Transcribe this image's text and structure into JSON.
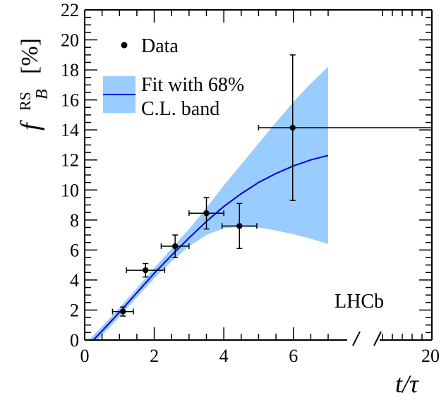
{
  "chart_data": {
    "type": "scatter",
    "xlabel": "t/τ",
    "ylabel": {
      "f": "f",
      "sup": "RS",
      "sub": "B",
      "unit": "[%]"
    },
    "annotation": "LHCb",
    "x_axis": {
      "segments": [
        [
          0,
          7
        ],
        [
          20,
          20
        ]
      ],
      "ticks": [
        {
          "value": 0,
          "label": "0"
        },
        {
          "value": 2,
          "label": "2"
        },
        {
          "value": 4,
          "label": "4"
        },
        {
          "value": 6,
          "label": "6"
        },
        {
          "value": 20,
          "label": "20"
        }
      ],
      "break_marks": true
    },
    "y_axis": {
      "range": [
        0,
        22
      ],
      "ticks": [
        {
          "value": 0,
          "label": "0"
        },
        {
          "value": 2,
          "label": "2"
        },
        {
          "value": 4,
          "label": "4"
        },
        {
          "value": 6,
          "label": "6"
        },
        {
          "value": 8,
          "label": "8"
        },
        {
          "value": 10,
          "label": "10"
        },
        {
          "value": 12,
          "label": "12"
        },
        {
          "value": 14,
          "label": "14"
        },
        {
          "value": 16,
          "label": "16"
        },
        {
          "value": 18,
          "label": "18"
        },
        {
          "value": 20,
          "label": "20"
        },
        {
          "value": 22,
          "label": "22"
        }
      ]
    },
    "legend": {
      "placement": "top-left",
      "data_label": "Data",
      "fit_label_line1": "Fit with 68%",
      "fit_label_line2": "C.L. band"
    },
    "series": [
      {
        "name": "Data",
        "kind": "points",
        "points": [
          {
            "x": 1.1,
            "y": 1.9,
            "xerr_low": 0.3,
            "xerr_high": 0.3,
            "yerr_low": 0.3,
            "yerr_high": 0.3
          },
          {
            "x": 1.75,
            "y": 4.65,
            "xerr_low": 0.55,
            "xerr_high": 0.55,
            "yerr_low": 0.45,
            "yerr_high": 0.45
          },
          {
            "x": 2.6,
            "y": 6.25,
            "xerr_low": 0.4,
            "xerr_high": 0.4,
            "yerr_low": 0.75,
            "yerr_high": 0.75
          },
          {
            "x": 3.5,
            "y": 8.45,
            "xerr_low": 0.5,
            "xerr_high": 0.5,
            "yerr_low": 1.05,
            "yerr_high": 1.05
          },
          {
            "x": 4.45,
            "y": 7.6,
            "xerr_low": 0.5,
            "xerr_high": 0.5,
            "yerr_low": 1.5,
            "yerr_high": 1.5
          },
          {
            "x": 5.98,
            "y": 14.15,
            "xerr_low": 0.98,
            "xerr_high": 14.02,
            "yerr_low": 4.85,
            "yerr_high": 4.85
          }
        ]
      },
      {
        "name": "Fit with 68% C.L. band",
        "kind": "fit",
        "color": "#0000dd",
        "band_color": "#99ccff",
        "x": [
          0,
          0.25,
          0.5,
          1.0,
          1.5,
          2.0,
          2.5,
          3.0,
          3.5,
          4.0,
          4.5,
          5.0,
          5.5,
          6.0,
          6.5,
          7.0
        ],
        "y": [
          -0.6,
          0.0,
          0.6,
          1.85,
          3.15,
          4.45,
          5.65,
          6.8,
          7.9,
          8.9,
          9.75,
          10.5,
          11.1,
          11.6,
          12.0,
          12.3
        ],
        "y_low": [
          -1.0,
          -0.3,
          0.3,
          1.55,
          2.85,
          4.1,
          5.25,
          6.25,
          7.0,
          7.45,
          7.55,
          7.5,
          7.3,
          7.05,
          6.75,
          6.4
        ],
        "y_high": [
          -0.2,
          0.3,
          0.9,
          2.15,
          3.45,
          4.8,
          6.1,
          7.4,
          8.8,
          10.3,
          11.7,
          13.1,
          14.5,
          15.85,
          17.1,
          18.2
        ]
      }
    ]
  }
}
